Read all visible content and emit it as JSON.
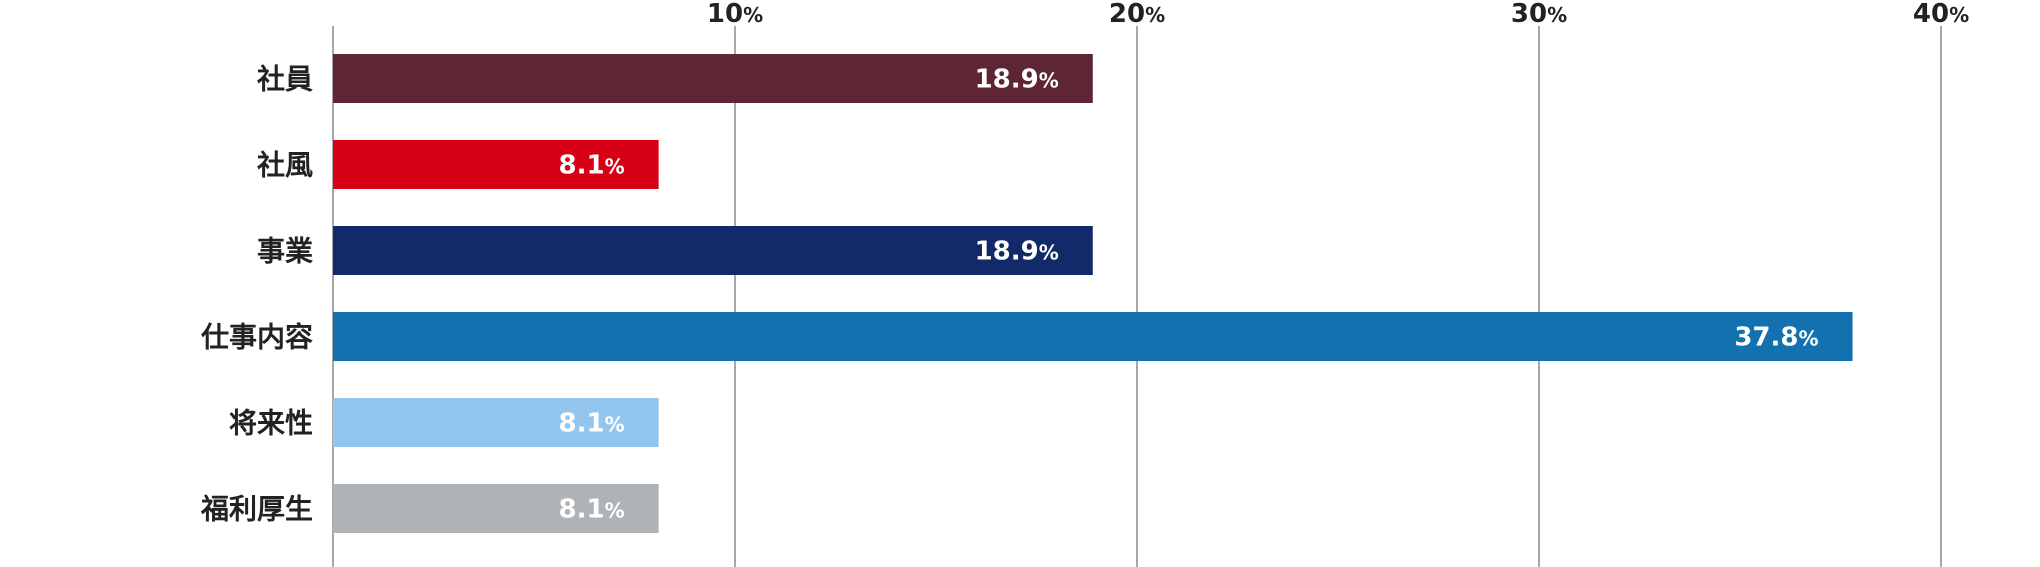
{
  "chart_data": {
    "type": "bar",
    "orientation": "horizontal",
    "categories": [
      "社員",
      "社風",
      "事業",
      "仕事内容",
      "将来性",
      "福利厚生"
    ],
    "values": [
      18.9,
      8.1,
      18.9,
      37.8,
      8.1,
      8.1
    ],
    "value_labels": [
      "18.9",
      "8.1",
      "18.9",
      "37.8",
      "8.1",
      "8.1"
    ],
    "value_unit": "%",
    "colors": [
      "#5e2535",
      "#d70015",
      "#12296a",
      "#1271ae",
      "#92c6ef",
      "#b0b3b6"
    ],
    "xlim": [
      0,
      40
    ],
    "x_ticks": [
      10,
      20,
      30,
      40
    ],
    "x_tick_labels": [
      "10",
      "20",
      "30",
      "40"
    ],
    "tick_unit": "%",
    "grid": true,
    "tick_position": "top",
    "grid_color": "#8a8a8a",
    "title": "",
    "xlabel": "",
    "ylabel": ""
  }
}
